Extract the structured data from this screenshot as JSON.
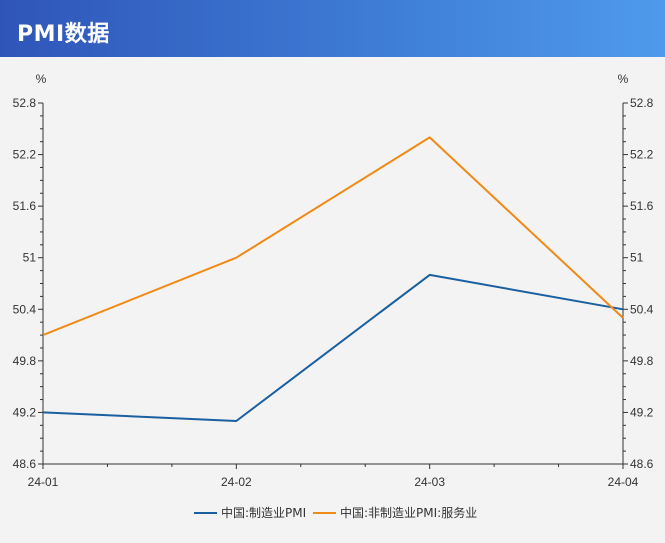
{
  "header": {
    "title": "PMI数据"
  },
  "chart_data": {
    "type": "line",
    "x": [
      "24-01",
      "24-02",
      "24-03",
      "24-04"
    ],
    "series": [
      {
        "name": "中国:制造业PMI",
        "values": [
          49.2,
          49.1,
          50.8,
          50.4
        ],
        "color": "#1a5fa0"
      },
      {
        "name": "中国:非制造业PMI:服务业",
        "values": [
          50.1,
          51.0,
          52.4,
          50.3
        ],
        "color": "#f08a16"
      }
    ],
    "ylim": [
      48.6,
      52.8
    ],
    "yticks": [
      "52.8",
      "52.2",
      "51.6",
      "51",
      "50.4",
      "49.8",
      "49.2",
      "48.6"
    ],
    "y_unit_left": "%",
    "y_unit_right": "%",
    "grid": false,
    "legend_position": "bottom-center"
  }
}
